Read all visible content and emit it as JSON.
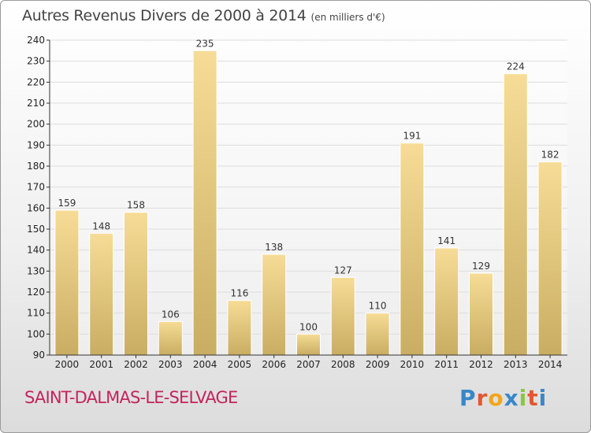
{
  "title": "Autres Revenus Divers de 2000 à 2014",
  "subtitle": "(en milliers d'€)",
  "commune": "SAINT-DALMAS-LE-SELVAGE",
  "logo": {
    "letters": [
      "P",
      "r",
      "o",
      "x",
      "i",
      "t",
      "i"
    ],
    "colors": [
      "#3a87c8",
      "#e2572f",
      "#f2a51a",
      "#3a87c8",
      "#8cc63f",
      "#e2572f",
      "#3a87c8"
    ]
  },
  "colors": {
    "bar_light": "#f6dc96",
    "bar_dark": "#c9ad62",
    "grid": "#dddddd",
    "axis": "#333333",
    "commune": "#c4245c",
    "title": "#444444"
  },
  "chart_data": {
    "type": "bar",
    "categories": [
      "2000",
      "2001",
      "2002",
      "2003",
      "2004",
      "2005",
      "2006",
      "2007",
      "2008",
      "2009",
      "2010",
      "2011",
      "2012",
      "2013",
      "2014"
    ],
    "values": [
      159,
      148,
      158,
      106,
      235,
      116,
      138,
      100,
      127,
      110,
      191,
      141,
      129,
      224,
      182
    ],
    "ylim": [
      90,
      240
    ],
    "yticks": [
      90,
      100,
      110,
      120,
      130,
      140,
      150,
      160,
      170,
      180,
      190,
      200,
      210,
      220,
      230,
      240
    ],
    "xlabel": "",
    "ylabel": "",
    "grid": true,
    "legend": "none"
  }
}
